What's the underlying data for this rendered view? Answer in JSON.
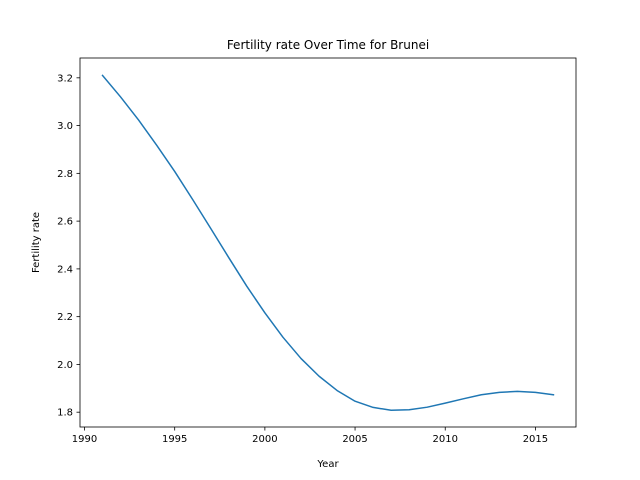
{
  "chart_data": {
    "type": "line",
    "title": "Fertility rate Over Time for Brunei",
    "xlabel": "Year",
    "ylabel": "Fertility rate",
    "xlim": [
      1989.75,
      2017.25
    ],
    "ylim": [
      1.738,
      3.283
    ],
    "xticks": [
      1990,
      1995,
      2000,
      2005,
      2010,
      2015
    ],
    "xtick_labels": [
      "1990",
      "1995",
      "2000",
      "2005",
      "2010",
      "2015"
    ],
    "yticks": [
      1.8,
      2.0,
      2.2,
      2.4,
      2.6,
      2.8,
      3.0,
      3.2
    ],
    "ytick_labels": [
      "1.8",
      "2.0",
      "2.2",
      "2.4",
      "2.6",
      "2.8",
      "3.0",
      "3.2"
    ],
    "grid": false,
    "line_color": "#1f77b4",
    "series": [
      {
        "x": [
          1991,
          1992,
          1993,
          1994,
          1995,
          1996,
          1997,
          1998,
          1999,
          2000,
          2001,
          2002,
          2003,
          2004,
          2005,
          2006,
          2007,
          2008,
          2009,
          2010,
          2011,
          2012,
          2013,
          2014,
          2015,
          2016
        ],
        "values": [
          3.21,
          3.12,
          3.023,
          2.918,
          2.808,
          2.69,
          2.569,
          2.447,
          2.327,
          2.216,
          2.114,
          2.025,
          1.951,
          1.891,
          1.846,
          1.82,
          1.808,
          1.81,
          1.821,
          1.838,
          1.856,
          1.873,
          1.883,
          1.887,
          1.883,
          1.873
        ]
      }
    ]
  }
}
